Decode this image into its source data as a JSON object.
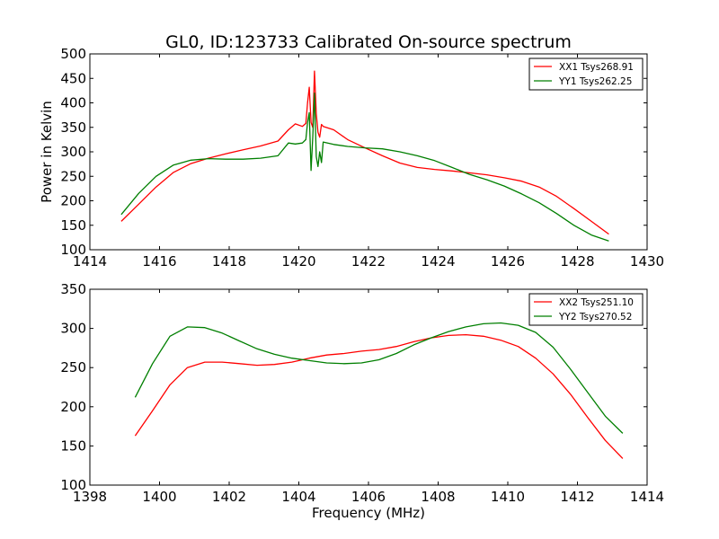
{
  "chart_data": [
    {
      "type": "line",
      "title": "GL0, ID:123733 Calibrated On-source spectrum",
      "xlabel": "",
      "ylabel": "Power in Kelvin",
      "xlim": [
        1414,
        1430
      ],
      "ylim": [
        100,
        500
      ],
      "xticks": [
        1414,
        1416,
        1418,
        1420,
        1422,
        1424,
        1426,
        1428,
        1430
      ],
      "yticks": [
        100,
        150,
        200,
        250,
        300,
        350,
        400,
        450,
        500
      ],
      "grid": false,
      "legend": "top-right",
      "series": [
        {
          "name": "XX1 Tsys268.91",
          "color": "#ff0000",
          "x": [
            1414.9,
            1415.4,
            1415.9,
            1416.4,
            1416.9,
            1417.4,
            1417.9,
            1418.4,
            1418.9,
            1419.4,
            1419.7,
            1419.9,
            1420.1,
            1420.2,
            1420.25,
            1420.3,
            1420.35,
            1420.4,
            1420.45,
            1420.5,
            1420.55,
            1420.6,
            1420.65,
            1420.7,
            1421.0,
            1421.4,
            1421.9,
            1422.4,
            1422.9,
            1423.4,
            1423.9,
            1424.4,
            1424.9,
            1425.4,
            1425.9,
            1426.4,
            1426.9,
            1427.4,
            1427.9,
            1428.4,
            1428.9
          ],
          "values": [
            158,
            193,
            228,
            258,
            276,
            287,
            296,
            304,
            312,
            322,
            345,
            357,
            352,
            358,
            400,
            432,
            360,
            350,
            465,
            378,
            340,
            330,
            356,
            352,
            345,
            325,
            308,
            292,
            277,
            268,
            264,
            261,
            257,
            253,
            247,
            240,
            228,
            209,
            184,
            158,
            132
          ]
        },
        {
          "name": "YY1 Tsys262.25",
          "color": "#007f00",
          "x": [
            1414.9,
            1415.4,
            1415.9,
            1416.4,
            1416.9,
            1417.4,
            1417.9,
            1418.4,
            1418.9,
            1419.4,
            1419.7,
            1419.9,
            1420.1,
            1420.2,
            1420.25,
            1420.3,
            1420.35,
            1420.4,
            1420.45,
            1420.5,
            1420.55,
            1420.6,
            1420.65,
            1420.7,
            1421.0,
            1421.4,
            1421.9,
            1422.4,
            1422.9,
            1423.4,
            1423.9,
            1424.4,
            1424.9,
            1425.4,
            1425.9,
            1426.4,
            1426.9,
            1427.4,
            1427.9,
            1428.4,
            1428.9
          ],
          "values": [
            172,
            215,
            250,
            273,
            283,
            286,
            285,
            285,
            287,
            292,
            318,
            316,
            318,
            325,
            360,
            380,
            262,
            330,
            420,
            290,
            270,
            300,
            278,
            320,
            315,
            311,
            308,
            306,
            300,
            292,
            282,
            268,
            254,
            243,
            230,
            214,
            196,
            174,
            150,
            130,
            118
          ]
        }
      ]
    },
    {
      "type": "line",
      "title": "",
      "xlabel": "Frequency (MHz)",
      "ylabel": "",
      "xlim": [
        1398,
        1414
      ],
      "ylim": [
        100,
        350
      ],
      "xticks": [
        1398,
        1400,
        1402,
        1404,
        1406,
        1408,
        1410,
        1412,
        1414
      ],
      "yticks": [
        100,
        150,
        200,
        250,
        300,
        350
      ],
      "grid": false,
      "legend": "top-right",
      "series": [
        {
          "name": "XX2 Tsys251.10",
          "color": "#ff0000",
          "x": [
            1399.3,
            1399.8,
            1400.3,
            1400.8,
            1401.3,
            1401.8,
            1402.3,
            1402.8,
            1403.3,
            1403.8,
            1404.3,
            1404.8,
            1405.3,
            1405.8,
            1406.3,
            1406.8,
            1407.3,
            1407.8,
            1408.3,
            1408.8,
            1409.3,
            1409.8,
            1410.3,
            1410.8,
            1411.3,
            1411.8,
            1412.3,
            1412.8,
            1413.3
          ],
          "values": [
            163,
            195,
            228,
            250,
            257,
            257,
            255,
            253,
            254,
            257,
            262,
            266,
            268,
            271,
            273,
            277,
            283,
            288,
            291,
            292,
            290,
            285,
            277,
            262,
            242,
            216,
            186,
            157,
            134
          ]
        },
        {
          "name": "YY2 Tsys270.52",
          "color": "#007f00",
          "x": [
            1399.3,
            1399.8,
            1400.3,
            1400.8,
            1401.3,
            1401.8,
            1402.3,
            1402.8,
            1403.3,
            1403.8,
            1404.3,
            1404.8,
            1405.3,
            1405.8,
            1406.3,
            1406.8,
            1407.3,
            1407.8,
            1408.3,
            1408.8,
            1409.3,
            1409.8,
            1410.3,
            1410.8,
            1411.3,
            1411.8,
            1412.3,
            1412.8,
            1413.3
          ],
          "values": [
            212,
            255,
            290,
            302,
            301,
            294,
            284,
            274,
            267,
            262,
            259,
            256,
            255,
            256,
            260,
            268,
            279,
            288,
            296,
            302,
            306,
            307,
            304,
            295,
            276,
            248,
            218,
            188,
            166
          ]
        }
      ]
    }
  ]
}
